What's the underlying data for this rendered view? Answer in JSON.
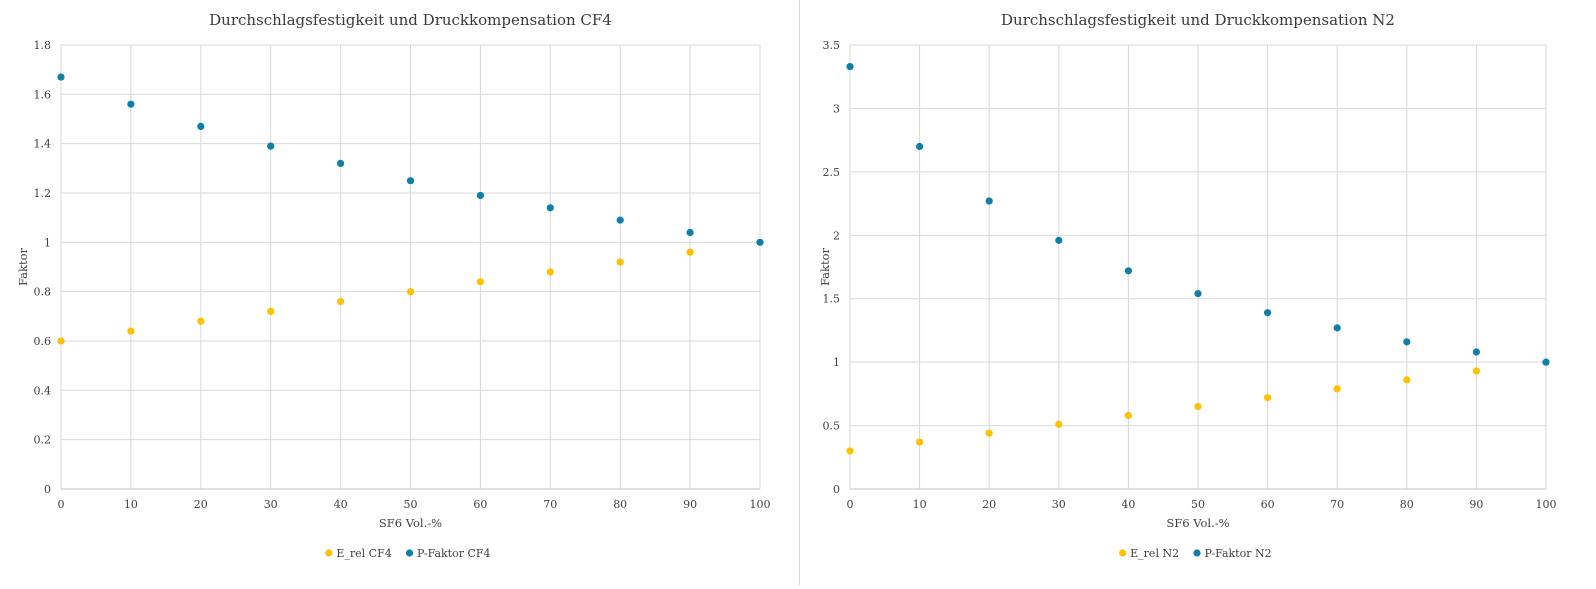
{
  "chart_data": [
    {
      "type": "scatter",
      "title": "Durchschlagsfestigkeit und Druckkompensation CF4",
      "xlabel": "SF6 Vol.-%",
      "ylabel": "Faktor",
      "xlim": [
        0,
        100
      ],
      "ylim": [
        0,
        1.8
      ],
      "x_ticks": [
        "0",
        "10",
        "20",
        "30",
        "40",
        "50",
        "60",
        "70",
        "80",
        "90",
        "100"
      ],
      "y_ticks": [
        "0",
        "0.2",
        "0.4",
        "0.6",
        "0.8",
        "1",
        "1.2",
        "1.4",
        "1.6",
        "1.8"
      ],
      "grid": true,
      "legend_position": "bottom",
      "x": [
        0,
        10,
        20,
        30,
        40,
        50,
        60,
        70,
        80,
        90,
        100
      ],
      "series": [
        {
          "name": "E_rel CF4",
          "color": "#FFC000",
          "values": [
            0.6,
            0.64,
            0.68,
            0.72,
            0.76,
            0.8,
            0.84,
            0.88,
            0.92,
            0.96,
            null
          ]
        },
        {
          "name": "P-Faktor CF4",
          "color": "#0E7FA6",
          "values": [
            1.67,
            1.56,
            1.47,
            1.39,
            1.32,
            1.25,
            1.19,
            1.14,
            1.09,
            1.04,
            1.0
          ]
        }
      ]
    },
    {
      "type": "scatter",
      "title": "Durchschlagsfestigkeit und Druckkompensation N2",
      "xlabel": "SF6 Vol.-%",
      "ylabel": "Faktor",
      "xlim": [
        0,
        100
      ],
      "ylim": [
        0,
        3.5
      ],
      "x_ticks": [
        "0",
        "10",
        "20",
        "30",
        "40",
        "50",
        "60",
        "70",
        "80",
        "90",
        "100"
      ],
      "y_ticks": [
        "0",
        "0.5",
        "1",
        "1.5",
        "2",
        "2.5",
        "3",
        "3.5"
      ],
      "grid": true,
      "legend_position": "bottom",
      "x": [
        0,
        10,
        20,
        30,
        40,
        50,
        60,
        70,
        80,
        90,
        100
      ],
      "series": [
        {
          "name": "E_rel N2",
          "color": "#FFC000",
          "values": [
            0.3,
            0.37,
            0.44,
            0.51,
            0.58,
            0.65,
            0.72,
            0.79,
            0.86,
            0.93,
            null
          ]
        },
        {
          "name": "P-Faktor N2",
          "color": "#0E7FA6",
          "values": [
            3.33,
            2.7,
            2.27,
            1.96,
            1.72,
            1.54,
            1.39,
            1.27,
            1.16,
            1.08,
            1.0
          ]
        }
      ]
    }
  ]
}
